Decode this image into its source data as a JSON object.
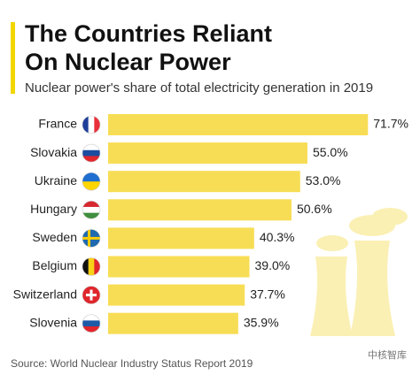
{
  "chart_data": {
    "type": "bar",
    "orientation": "horizontal",
    "title": [
      "The Countries Reliant",
      "On Nuclear Power"
    ],
    "subtitle": "Nuclear power's share of total electricity generation in 2019",
    "categories": [
      "France",
      "Slovakia",
      "Ukraine",
      "Hungary",
      "Sweden",
      "Belgium",
      "Switzerland",
      "Slovenia"
    ],
    "values": [
      71.7,
      55.0,
      53.0,
      50.6,
      40.3,
      39.0,
      37.7,
      35.9
    ],
    "value_labels": [
      "71.7%",
      "55.0%",
      "53.0%",
      "50.6%",
      "40.3%",
      "39.0%",
      "37.7%",
      "35.9%"
    ],
    "color": "#f7dd55",
    "source": "Source: World Nuclear Industry Status Report 2019",
    "watermark": "中核智库"
  }
}
